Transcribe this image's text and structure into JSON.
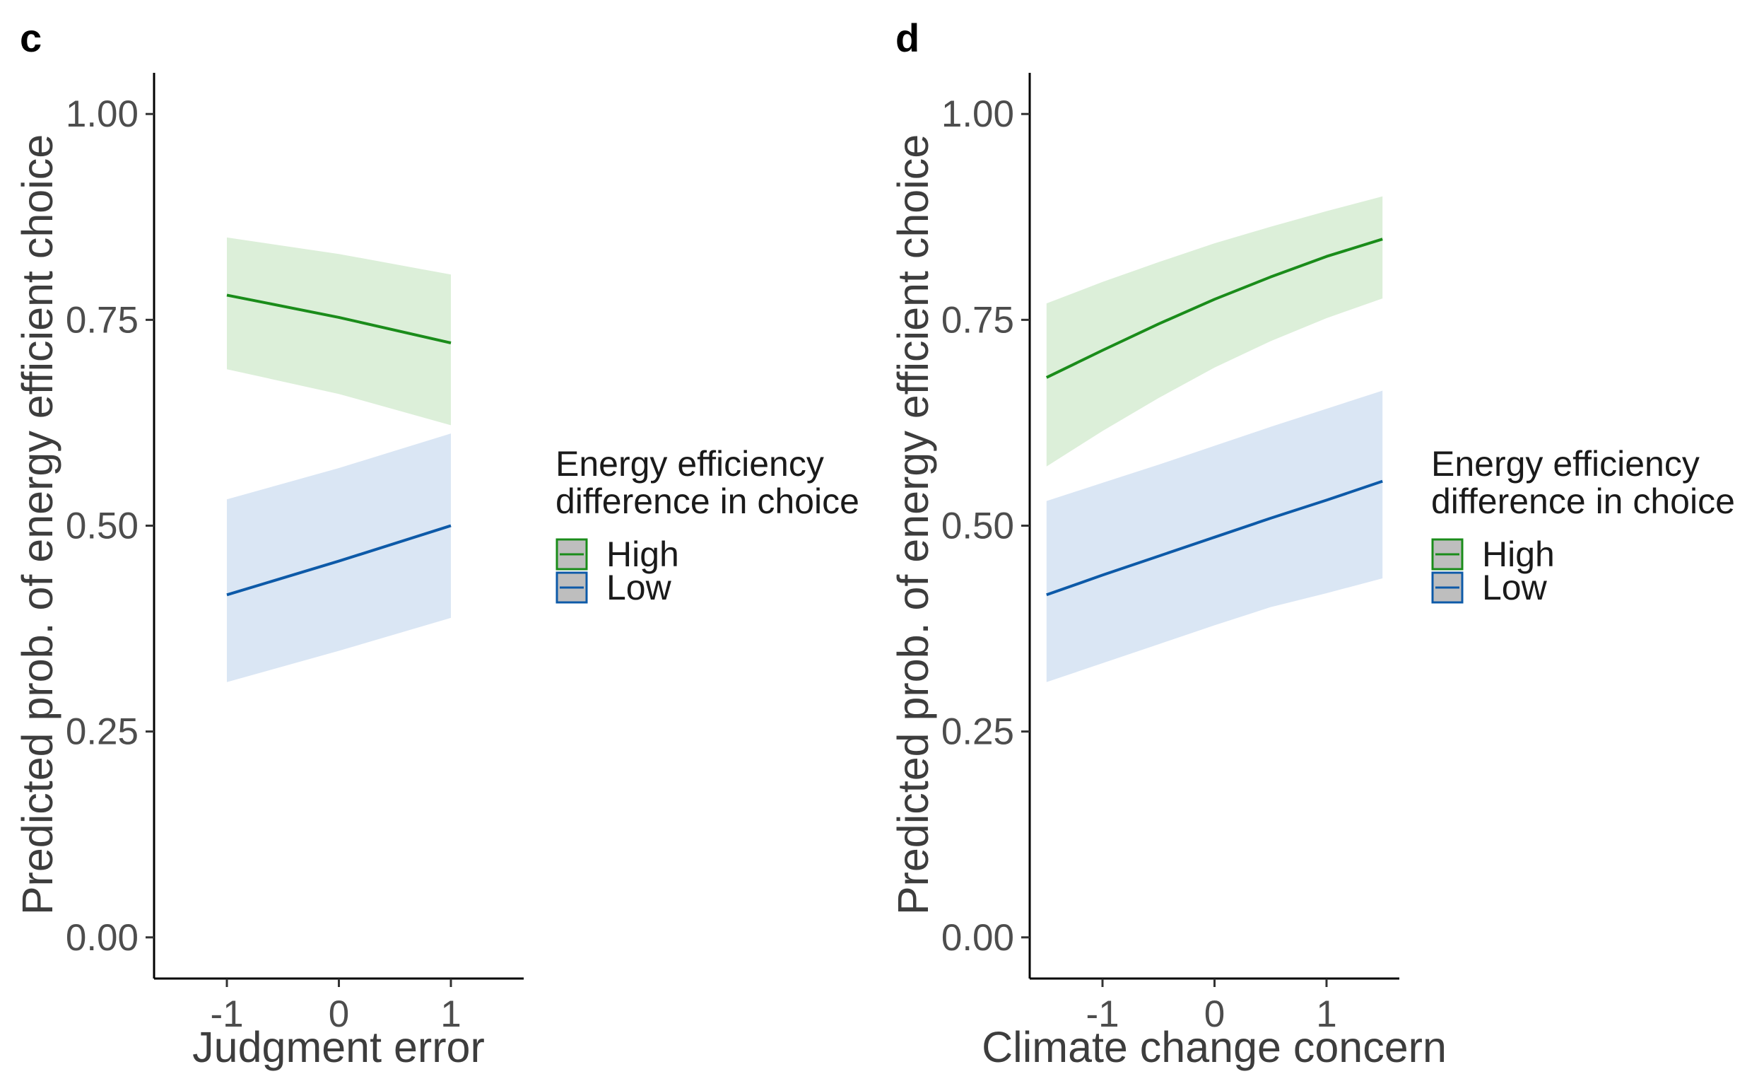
{
  "chart_data": [
    {
      "type": "line",
      "panel": "c",
      "xlabel": "Judgment error",
      "ylabel": "Predicted prob. of energy efficient choice",
      "x_ticks": [
        "-1",
        "0",
        "1"
      ],
      "y_ticks": [
        "0.00",
        "0.25",
        "0.50",
        "0.75",
        "1.00"
      ],
      "xlim": [
        -1.65,
        1.65
      ],
      "ylim": [
        -0.05,
        1.05
      ],
      "legend": {
        "title_line1": "Energy efficiency",
        "title_line2": "difference in choice",
        "position": "right",
        "entries": [
          "High",
          "Low"
        ]
      },
      "series": [
        {
          "name": "High",
          "color": "#1a8c1a",
          "fill": "#dcefd9",
          "x": [
            -1,
            0,
            1
          ],
          "y": [
            0.78,
            0.753,
            0.722
          ],
          "lower": [
            0.69,
            0.66,
            0.622
          ],
          "upper": [
            0.85,
            0.83,
            0.805
          ]
        },
        {
          "name": "Low",
          "color": "#0d5aa8",
          "fill": "#dae6f4",
          "x": [
            -1,
            0,
            1
          ],
          "y": [
            0.416,
            0.457,
            0.5
          ],
          "lower": [
            0.31,
            0.348,
            0.388
          ],
          "upper": [
            0.532,
            0.57,
            0.612
          ]
        }
      ]
    },
    {
      "type": "line",
      "panel": "d",
      "xlabel": "Climate change concern",
      "ylabel": "Predicted prob. of energy efficient choice",
      "x_ticks": [
        "-1",
        "0",
        "1"
      ],
      "y_ticks": [
        "0.00",
        "0.25",
        "0.50",
        "0.75",
        "1.00"
      ],
      "xlim": [
        -1.65,
        1.65
      ],
      "ylim": [
        -0.05,
        1.05
      ],
      "legend": {
        "title_line1": "Energy efficiency",
        "title_line2": "difference in choice",
        "position": "right",
        "entries": [
          "High",
          "Low"
        ]
      },
      "series": [
        {
          "name": "High",
          "color": "#1a8c1a",
          "fill": "#dcefd9",
          "x": [
            -1.5,
            -1,
            -0.5,
            0,
            0.5,
            1,
            1.5
          ],
          "y": [
            0.68,
            0.713,
            0.745,
            0.775,
            0.802,
            0.827,
            0.848
          ],
          "lower": [
            0.572,
            0.615,
            0.655,
            0.692,
            0.724,
            0.752,
            0.776
          ],
          "upper": [
            0.77,
            0.796,
            0.82,
            0.843,
            0.863,
            0.882,
            0.9
          ]
        },
        {
          "name": "Low",
          "color": "#0d5aa8",
          "fill": "#dae6f4",
          "x": [
            -1.5,
            -1,
            -0.5,
            0,
            0.5,
            1,
            1.5
          ],
          "y": [
            0.416,
            0.44,
            0.463,
            0.486,
            0.509,
            0.531,
            0.554
          ],
          "lower": [
            0.31,
            0.333,
            0.356,
            0.379,
            0.401,
            0.418,
            0.436
          ],
          "upper": [
            0.53,
            0.552,
            0.574,
            0.597,
            0.62,
            0.642,
            0.664
          ]
        }
      ]
    }
  ]
}
